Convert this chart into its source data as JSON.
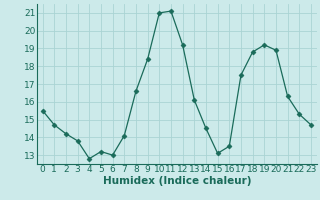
{
  "x": [
    0,
    1,
    2,
    3,
    4,
    5,
    6,
    7,
    8,
    9,
    10,
    11,
    12,
    13,
    14,
    15,
    16,
    17,
    18,
    19,
    20,
    21,
    22,
    23
  ],
  "y": [
    15.5,
    14.7,
    14.2,
    13.8,
    12.8,
    13.2,
    13.0,
    14.1,
    16.6,
    18.4,
    21.0,
    21.1,
    19.2,
    16.1,
    14.5,
    13.1,
    13.5,
    17.5,
    18.8,
    19.2,
    18.9,
    16.3,
    15.3,
    14.7
  ],
  "line_color": "#1a6b5a",
  "marker": "D",
  "marker_size": 2.5,
  "bg_color": "#cceaea",
  "grid_color": "#aad4d4",
  "xlabel": "Humidex (Indice chaleur)",
  "xlim": [
    -0.5,
    23.5
  ],
  "ylim": [
    12.5,
    21.5
  ],
  "yticks": [
    13,
    14,
    15,
    16,
    17,
    18,
    19,
    20,
    21
  ],
  "xticks": [
    0,
    1,
    2,
    3,
    4,
    5,
    6,
    7,
    8,
    9,
    10,
    11,
    12,
    13,
    14,
    15,
    16,
    17,
    18,
    19,
    20,
    21,
    22,
    23
  ],
  "tick_label_fontsize": 6.5,
  "xlabel_fontsize": 7.5
}
